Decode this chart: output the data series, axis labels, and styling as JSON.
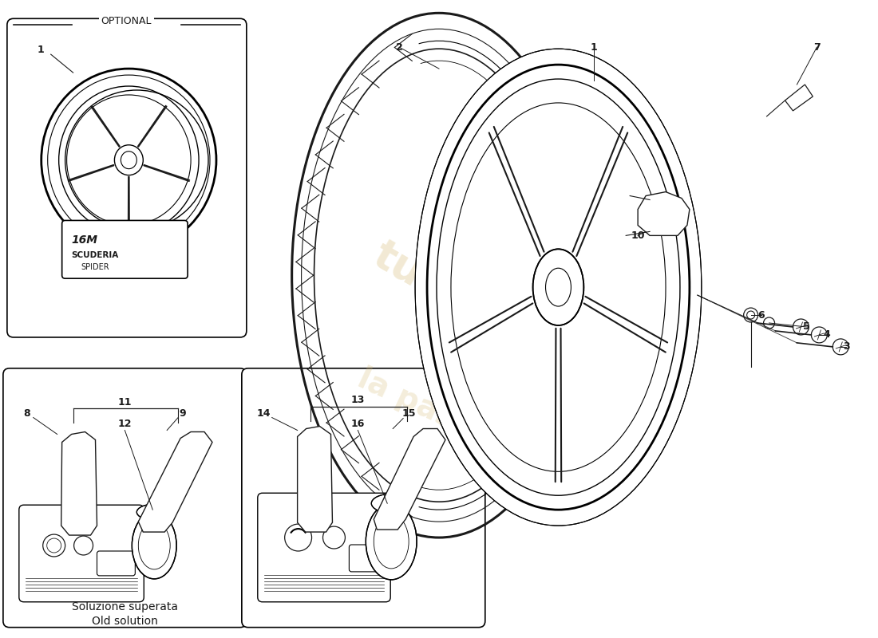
{
  "background_color": "#ffffff",
  "line_color": "#1a1a1a",
  "light_line_color": "#555555",
  "watermark_color": "#e8d5a0",
  "optional_label": "OPTIONAL",
  "bottom_label_it": "Soluzione superata",
  "bottom_label_en": "Old solution"
}
